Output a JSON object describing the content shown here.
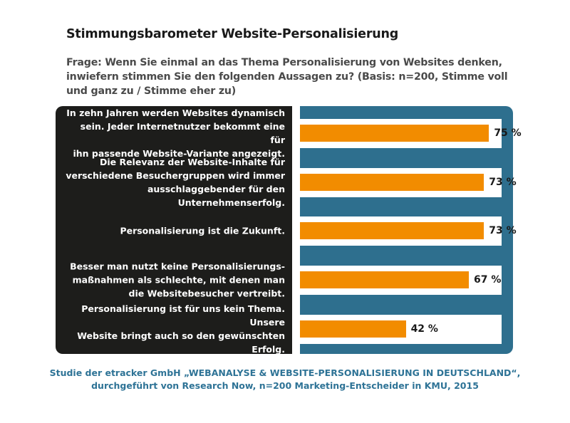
{
  "title": "Stimmungsbarometer Website-Personalisierung",
  "question": "Frage: Wenn Sie einmal an das Thema Personalisierung von Websites denken, inwiefern stimmen Sie den folgenden Aussagen zu? (Basis: n=200, Stimme voll und ganz zu / Stimme eher zu)",
  "footer_line1": "Studie der etracker GmbH „WEBANALYSE & WEBSITE-PERSONALISIERUNG IN DEUTSCHLAND“,",
  "footer_line2": "durchgeführt von Research Now, n=200 Marketing-Entscheider in KMU, 2015",
  "colors": {
    "bar": "#f28c00",
    "label_panel": "#1d1d1b",
    "bar_panel": "#2e6f8e",
    "footer_text": "#2e7396"
  },
  "chart_data": {
    "type": "bar",
    "orientation": "horizontal",
    "value_suffix": " %",
    "xlim": [
      0,
      80
    ],
    "categories": [
      [
        "In zehn Jahren werden Websites dynamisch",
        "sein. Jeder Internetnutzer bekommt eine für",
        "ihn passende Website-Variante angezeigt."
      ],
      [
        "Die Relevanz der Website-Inhalte für",
        "verschiedene Besuchergruppen wird immer",
        "ausschlaggebender für den Unternehmenserfolg."
      ],
      [
        "Personalisierung ist die Zukunft."
      ],
      [
        "Besser man nutzt keine Personalisierungs-",
        "maßnahmen als schlechte, mit denen man",
        "die Websitebesucher vertreibt."
      ],
      [
        "Personalisierung ist für uns kein Thema. Unsere",
        "Website bringt auch so den gewünschten Erfolg."
      ]
    ],
    "values": [
      75,
      73,
      73,
      67,
      42
    ]
  }
}
